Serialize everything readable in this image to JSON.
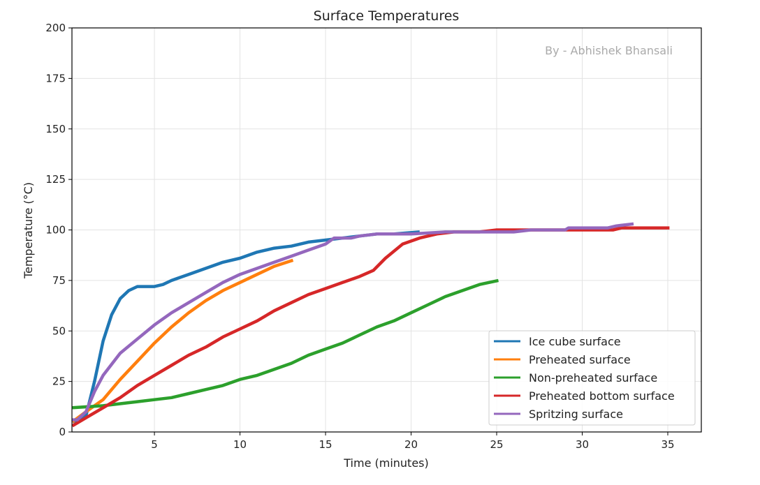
{
  "chart_data": {
    "type": "line",
    "title": "Surface Temperatures",
    "xlabel": "Time (minutes)",
    "ylabel": "Temperature (°C)",
    "annotation": "By - Abhishek Bhansali",
    "xlim": [
      0.18,
      36.96
    ],
    "ylim": [
      0,
      200
    ],
    "xticks": [
      5,
      10,
      15,
      20,
      25,
      30,
      35
    ],
    "yticks": [
      0,
      25,
      50,
      75,
      100,
      125,
      150,
      175,
      200
    ],
    "grid": true,
    "legend_position": "bottom-right",
    "series": [
      {
        "name": "Ice cube surface",
        "color": "#1f77b4",
        "x": [
          0.2,
          0.5,
          1,
          1.5,
          2,
          2.5,
          3,
          3.5,
          4,
          5,
          5.5,
          6,
          7,
          8,
          9,
          10,
          11,
          12,
          13,
          14,
          15,
          16,
          17,
          18,
          19,
          20.5
        ],
        "y": [
          5,
          6,
          8,
          25,
          45,
          58,
          66,
          70,
          72,
          72,
          73,
          75,
          78,
          81,
          84,
          86,
          89,
          91,
          92,
          94,
          95,
          96,
          97,
          98,
          98,
          99
        ]
      },
      {
        "name": "Preheated surface",
        "color": "#ff7f0e",
        "x": [
          0.2,
          1,
          2,
          3,
          4,
          5,
          6,
          7,
          8,
          9,
          10,
          11,
          12,
          13.1
        ],
        "y": [
          5,
          10,
          16,
          26,
          35,
          44,
          52,
          59,
          65,
          70,
          74,
          78,
          82,
          85
        ]
      },
      {
        "name": "Non-preheated surface",
        "color": "#2ca02c",
        "x": [
          0.2,
          2,
          3,
          4,
          5,
          6,
          7,
          8,
          9,
          10,
          11,
          12,
          13,
          14,
          15,
          16,
          17,
          18,
          19,
          20,
          21,
          22,
          23,
          24,
          25.1
        ],
        "y": [
          12,
          13,
          14,
          15,
          16,
          17,
          19,
          21,
          23,
          26,
          28,
          31,
          34,
          38,
          41,
          44,
          48,
          52,
          55,
          59,
          63,
          67,
          70,
          73,
          75
        ]
      },
      {
        "name": "Preheated bottom surface",
        "color": "#d62728",
        "x": [
          0.2,
          1,
          2,
          3,
          4,
          5,
          6,
          7,
          8,
          9,
          10,
          11,
          12,
          13,
          14,
          15,
          16,
          17,
          17.8,
          18.5,
          19.5,
          20.5,
          21.5,
          22.5,
          24,
          25,
          30,
          31.8,
          32.3,
          35.1
        ],
        "y": [
          3,
          7,
          12,
          17,
          23,
          28,
          33,
          38,
          42,
          47,
          51,
          55,
          60,
          64,
          68,
          71,
          74,
          77,
          80,
          86,
          93,
          96,
          98,
          99,
          99,
          100,
          100,
          100,
          101,
          101
        ]
      },
      {
        "name": "Spritzing surface",
        "color": "#9467bd",
        "x": [
          0.2,
          0.5,
          1,
          1.5,
          2,
          3,
          4,
          5,
          6,
          7,
          8,
          9,
          10,
          11,
          12,
          13,
          14,
          15,
          15.5,
          16.5,
          17,
          18,
          19,
          20,
          22,
          25,
          26,
          27,
          29,
          29.2,
          31.5,
          32,
          33
        ],
        "y": [
          6,
          6,
          10,
          20,
          28,
          39,
          46,
          53,
          59,
          64,
          69,
          74,
          78,
          81,
          84,
          87,
          90,
          93,
          96,
          96,
          97,
          98,
          98,
          98,
          99,
          99,
          99,
          100,
          100,
          101,
          101,
          102,
          103
        ]
      }
    ]
  }
}
